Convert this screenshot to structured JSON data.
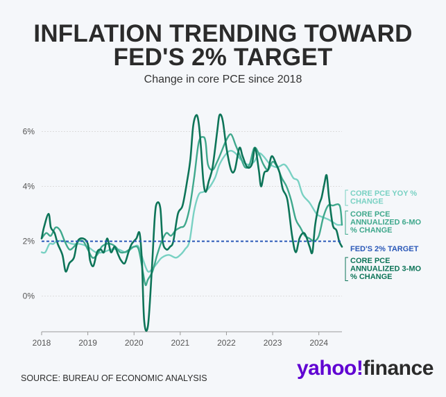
{
  "header": {
    "title_line1": "INFLATION TRENDING TOWARD",
    "title_line2": "FED'S 2% TARGET",
    "subtitle": "Change in core PCE since 2018"
  },
  "footer": {
    "source": "SOURCE: BUREAU OF ECONOMIC ANALYSIS",
    "logo_brand": "yahoo!",
    "logo_product": "finance"
  },
  "colors": {
    "yoy": "#79d1c3",
    "six_mo": "#3fa88c",
    "three_mo": "#0d7458",
    "target": "#2a58b8"
  },
  "chart_data": {
    "type": "line",
    "xlim": [
      2018.0,
      2024.5
    ],
    "ylim": [
      -1.3,
      7.0
    ],
    "x_ticks": [
      2018,
      2019,
      2020,
      2021,
      2022,
      2023,
      2024
    ],
    "x_tick_labels": [
      "2018",
      "2019",
      "2020",
      "2021",
      "2022",
      "2023",
      "2024"
    ],
    "y_ticks": [
      0,
      2,
      4,
      6
    ],
    "y_tick_labels": [
      "0%",
      "2%",
      "4%",
      "6%"
    ],
    "target_line": {
      "value": 2,
      "label": "FED'S 2% TARGET"
    },
    "series": [
      {
        "name": "CORE PCE YOY % CHANGE",
        "color_key": "yoy",
        "points": [
          [
            2018.0,
            1.6
          ],
          [
            2018.08,
            1.6
          ],
          [
            2018.17,
            1.9
          ],
          [
            2018.25,
            1.9
          ],
          [
            2018.33,
            2.0
          ],
          [
            2018.5,
            2.0
          ],
          [
            2018.67,
            1.9
          ],
          [
            2018.83,
            1.9
          ],
          [
            2019.0,
            1.8
          ],
          [
            2019.17,
            1.6
          ],
          [
            2019.33,
            1.6
          ],
          [
            2019.5,
            1.7
          ],
          [
            2019.67,
            1.7
          ],
          [
            2019.83,
            1.6
          ],
          [
            2020.0,
            1.8
          ],
          [
            2020.1,
            1.8
          ],
          [
            2020.2,
            1.3
          ],
          [
            2020.3,
            0.9
          ],
          [
            2020.4,
            1.0
          ],
          [
            2020.5,
            1.2
          ],
          [
            2020.6,
            1.4
          ],
          [
            2020.75,
            1.5
          ],
          [
            2020.9,
            1.4
          ],
          [
            2021.0,
            1.5
          ],
          [
            2021.1,
            1.7
          ],
          [
            2021.2,
            2.0
          ],
          [
            2021.3,
            3.1
          ],
          [
            2021.4,
            3.7
          ],
          [
            2021.5,
            3.8
          ],
          [
            2021.6,
            3.9
          ],
          [
            2021.75,
            4.3
          ],
          [
            2021.85,
            4.8
          ],
          [
            2022.0,
            5.2
          ],
          [
            2022.1,
            5.3
          ],
          [
            2022.2,
            5.2
          ],
          [
            2022.3,
            5.0
          ],
          [
            2022.45,
            4.8
          ],
          [
            2022.6,
            4.9
          ],
          [
            2022.7,
            5.2
          ],
          [
            2022.8,
            5.1
          ],
          [
            2022.95,
            4.8
          ],
          [
            2023.1,
            4.7
          ],
          [
            2023.25,
            4.8
          ],
          [
            2023.35,
            4.6
          ],
          [
            2023.45,
            4.3
          ],
          [
            2023.55,
            4.2
          ],
          [
            2023.65,
            3.7
          ],
          [
            2023.8,
            3.4
          ],
          [
            2023.95,
            3.0
          ],
          [
            2024.05,
            2.9
          ],
          [
            2024.2,
            2.8
          ],
          [
            2024.3,
            2.7
          ],
          [
            2024.4,
            2.6
          ],
          [
            2024.5,
            2.6
          ]
        ]
      },
      {
        "name": "CORE PCE ANNUALIZED 6-MO % CHANGE",
        "color_key": "six_mo",
        "points": [
          [
            2018.0,
            2.1
          ],
          [
            2018.1,
            2.3
          ],
          [
            2018.2,
            2.2
          ],
          [
            2018.3,
            2.5
          ],
          [
            2018.4,
            2.4
          ],
          [
            2018.5,
            2.0
          ],
          [
            2018.6,
            1.7
          ],
          [
            2018.7,
            1.8
          ],
          [
            2018.8,
            2.0
          ],
          [
            2018.9,
            2.0
          ],
          [
            2019.0,
            1.7
          ],
          [
            2019.1,
            1.4
          ],
          [
            2019.2,
            1.5
          ],
          [
            2019.3,
            1.8
          ],
          [
            2019.4,
            1.9
          ],
          [
            2019.5,
            1.9
          ],
          [
            2019.6,
            1.8
          ],
          [
            2019.7,
            1.6
          ],
          [
            2019.8,
            1.6
          ],
          [
            2019.9,
            1.7
          ],
          [
            2020.0,
            1.8
          ],
          [
            2020.1,
            1.7
          ],
          [
            2020.2,
            0.8
          ],
          [
            2020.25,
            0.4
          ],
          [
            2020.3,
            0.6
          ],
          [
            2020.4,
            0.9
          ],
          [
            2020.5,
            1.5
          ],
          [
            2020.6,
            2.0
          ],
          [
            2020.7,
            2.3
          ],
          [
            2020.8,
            2.2
          ],
          [
            2020.9,
            2.4
          ],
          [
            2021.0,
            2.5
          ],
          [
            2021.1,
            2.6
          ],
          [
            2021.2,
            3.2
          ],
          [
            2021.3,
            4.3
          ],
          [
            2021.4,
            5.6
          ],
          [
            2021.5,
            5.8
          ],
          [
            2021.55,
            5.6
          ],
          [
            2021.6,
            4.8
          ],
          [
            2021.7,
            4.6
          ],
          [
            2021.8,
            4.9
          ],
          [
            2021.9,
            5.3
          ],
          [
            2022.0,
            5.7
          ],
          [
            2022.1,
            5.9
          ],
          [
            2022.2,
            5.5
          ],
          [
            2022.3,
            5.1
          ],
          [
            2022.4,
            4.7
          ],
          [
            2022.5,
            4.8
          ],
          [
            2022.6,
            5.4
          ],
          [
            2022.7,
            5.2
          ],
          [
            2022.8,
            4.8
          ],
          [
            2022.9,
            4.6
          ],
          [
            2023.0,
            4.9
          ],
          [
            2023.1,
            4.7
          ],
          [
            2023.2,
            4.3
          ],
          [
            2023.3,
            4.0
          ],
          [
            2023.4,
            3.5
          ],
          [
            2023.5,
            2.8
          ],
          [
            2023.6,
            2.5
          ],
          [
            2023.7,
            2.2
          ],
          [
            2023.8,
            2.1
          ],
          [
            2023.9,
            2.0
          ],
          [
            2024.0,
            2.2
          ],
          [
            2024.1,
            2.9
          ],
          [
            2024.2,
            3.3
          ],
          [
            2024.3,
            3.3
          ],
          [
            2024.45,
            3.3
          ],
          [
            2024.5,
            2.6
          ]
        ]
      },
      {
        "name": "CORE PCE ANNUALIZED 3-MO % CHANGE",
        "color_key": "three_mo",
        "points": [
          [
            2018.0,
            2.1
          ],
          [
            2018.05,
            2.5
          ],
          [
            2018.15,
            3.0
          ],
          [
            2018.2,
            2.5
          ],
          [
            2018.28,
            2.3
          ],
          [
            2018.35,
            1.9
          ],
          [
            2018.45,
            1.5
          ],
          [
            2018.52,
            0.9
          ],
          [
            2018.6,
            1.2
          ],
          [
            2018.7,
            1.4
          ],
          [
            2018.78,
            2.0
          ],
          [
            2018.9,
            2.1
          ],
          [
            2019.0,
            1.9
          ],
          [
            2019.05,
            1.3
          ],
          [
            2019.12,
            1.1
          ],
          [
            2019.2,
            1.6
          ],
          [
            2019.28,
            1.7
          ],
          [
            2019.35,
            1.6
          ],
          [
            2019.42,
            2.1
          ],
          [
            2019.5,
            1.6
          ],
          [
            2019.58,
            1.8
          ],
          [
            2019.66,
            1.5
          ],
          [
            2019.72,
            1.3
          ],
          [
            2019.8,
            1.2
          ],
          [
            2019.88,
            1.6
          ],
          [
            2019.95,
            1.9
          ],
          [
            2020.05,
            2.1
          ],
          [
            2020.12,
            2.3
          ],
          [
            2020.17,
            1.3
          ],
          [
            2020.22,
            -0.9
          ],
          [
            2020.3,
            -1.1
          ],
          [
            2020.38,
            0.8
          ],
          [
            2020.45,
            2.9
          ],
          [
            2020.5,
            3.4
          ],
          [
            2020.57,
            3.2
          ],
          [
            2020.62,
            2.0
          ],
          [
            2020.7,
            1.7
          ],
          [
            2020.78,
            1.8
          ],
          [
            2020.85,
            2.0
          ],
          [
            2020.95,
            3.0
          ],
          [
            2021.05,
            3.3
          ],
          [
            2021.15,
            4.2
          ],
          [
            2021.22,
            5.0
          ],
          [
            2021.28,
            6.2
          ],
          [
            2021.35,
            6.6
          ],
          [
            2021.4,
            6.3
          ],
          [
            2021.45,
            5.4
          ],
          [
            2021.5,
            4.2
          ],
          [
            2021.55,
            3.8
          ],
          [
            2021.62,
            4.2
          ],
          [
            2021.7,
            4.7
          ],
          [
            2021.8,
            6.0
          ],
          [
            2021.85,
            6.6
          ],
          [
            2021.92,
            6.4
          ],
          [
            2022.0,
            5.4
          ],
          [
            2022.1,
            4.6
          ],
          [
            2022.18,
            4.6
          ],
          [
            2022.28,
            5.4
          ],
          [
            2022.35,
            5.1
          ],
          [
            2022.45,
            4.7
          ],
          [
            2022.55,
            4.8
          ],
          [
            2022.62,
            5.4
          ],
          [
            2022.7,
            4.6
          ],
          [
            2022.75,
            4.0
          ],
          [
            2022.82,
            4.5
          ],
          [
            2022.9,
            4.6
          ],
          [
            2022.98,
            5.1
          ],
          [
            2023.08,
            4.8
          ],
          [
            2023.15,
            4.5
          ],
          [
            2023.22,
            3.9
          ],
          [
            2023.32,
            3.5
          ],
          [
            2023.42,
            2.2
          ],
          [
            2023.5,
            1.6
          ],
          [
            2023.58,
            2.1
          ],
          [
            2023.66,
            2.3
          ],
          [
            2023.72,
            2.2
          ],
          [
            2023.8,
            1.8
          ],
          [
            2023.86,
            1.6
          ],
          [
            2023.92,
            2.6
          ],
          [
            2024.0,
            3.3
          ],
          [
            2024.06,
            3.6
          ],
          [
            2024.12,
            4.1
          ],
          [
            2024.17,
            4.4
          ],
          [
            2024.22,
            3.6
          ],
          [
            2024.3,
            2.6
          ],
          [
            2024.38,
            2.4
          ],
          [
            2024.44,
            2.0
          ],
          [
            2024.5,
            1.8
          ]
        ]
      }
    ],
    "legend": [
      {
        "label_lines": [
          "CORE PCE YOY %",
          "CHANGE"
        ],
        "color_key": "yoy"
      },
      {
        "label_lines": [
          "CORE PCE",
          "ANNUALIZED 6-MO",
          "% CHANGE"
        ],
        "color_key": "six_mo"
      },
      {
        "label_lines": [
          "FED'S 2% TARGET"
        ],
        "color_key": "target"
      },
      {
        "label_lines": [
          "CORE PCE",
          "ANNUALIZED 3-MO",
          "% CHANGE"
        ],
        "color_key": "three_mo"
      }
    ]
  }
}
